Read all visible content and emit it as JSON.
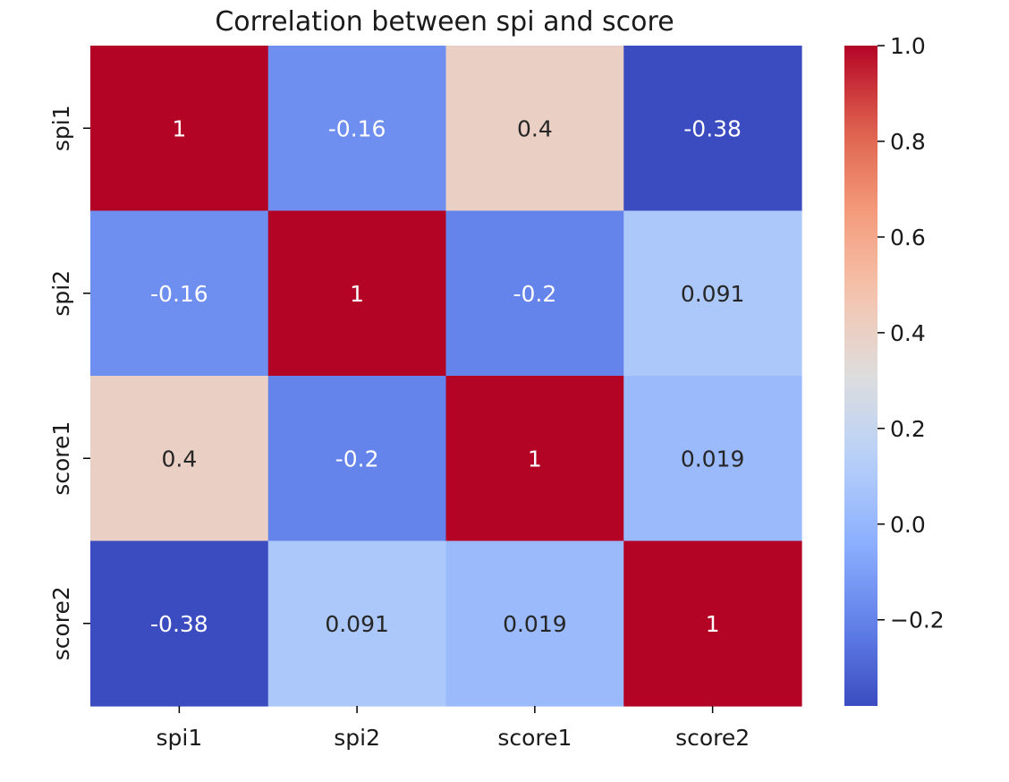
{
  "chart_data": {
    "type": "heatmap",
    "title": "Correlation between spi and score",
    "row_labels": [
      "spi1",
      "spi2",
      "score1",
      "score2"
    ],
    "col_labels": [
      "spi1",
      "spi2",
      "score1",
      "score2"
    ],
    "values": [
      [
        1,
        -0.16,
        0.4,
        -0.38
      ],
      [
        -0.16,
        1,
        -0.2,
        0.091
      ],
      [
        0.4,
        -0.2,
        1,
        0.019
      ],
      [
        -0.38,
        0.091,
        0.019,
        1
      ]
    ],
    "cell_labels": [
      [
        "1",
        "-0.16",
        "0.4",
        "-0.38"
      ],
      [
        "-0.16",
        "1",
        "-0.2",
        "0.091"
      ],
      [
        "0.4",
        "-0.2",
        "1",
        "0.019"
      ],
      [
        "-0.38",
        "0.091",
        "0.019",
        "1"
      ]
    ],
    "colormap": "coolwarm",
    "color_range": [
      -0.38,
      1.0
    ],
    "colorbar": {
      "ticks": [
        1.0,
        0.8,
        0.6,
        0.4,
        0.2,
        0.0,
        -0.2
      ],
      "tick_labels": [
        "1.0",
        "0.8",
        "0.6",
        "0.4",
        "0.2",
        "0.0",
        "−0.2"
      ],
      "placement": "right"
    },
    "colors": {
      "annotation_dark": "#262626",
      "annotation_light": "#ffffff",
      "axis": "#000000"
    }
  }
}
